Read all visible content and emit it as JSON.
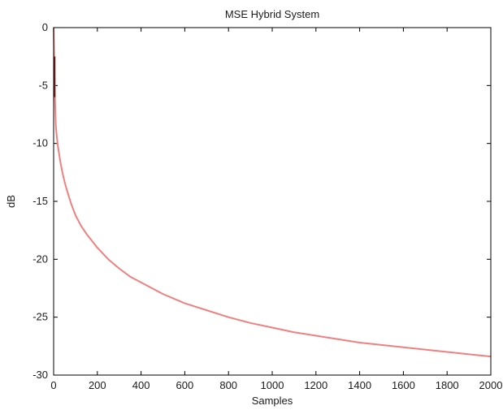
{
  "chart_data": {
    "type": "line",
    "title": "MSE Hybrid System",
    "xlabel": "Samples",
    "ylabel": "dB",
    "xlim": [
      0,
      2000
    ],
    "ylim": [
      -30,
      0
    ],
    "xticks": [
      0,
      200,
      400,
      600,
      800,
      1000,
      1200,
      1400,
      1600,
      1800,
      2000
    ],
    "yticks": [
      0,
      -5,
      -10,
      -15,
      -20,
      -25,
      -30
    ],
    "x_tick_labels": [
      "0",
      "200",
      "400",
      "600",
      "800",
      "1000",
      "1200",
      "1400",
      "1600",
      "1800",
      "2000"
    ],
    "y_tick_labels": [
      "0",
      "-5",
      "-10",
      "-15",
      "-20",
      "-25",
      "-30"
    ],
    "grid": false,
    "series": [
      {
        "color": "#f08080",
        "x": [
          0,
          3,
          6,
          10,
          15,
          20,
          30,
          40,
          50,
          60,
          80,
          100,
          125,
          150,
          200,
          250,
          300,
          350,
          400,
          500,
          600,
          700,
          800,
          900,
          1000,
          1100,
          1200,
          1300,
          1400,
          1500,
          1600,
          1700,
          1800,
          1900,
          2000
        ],
        "y": [
          0,
          -3,
          -6,
          -8.5,
          -9.5,
          -10.3,
          -11.5,
          -12.5,
          -13.3,
          -14.0,
          -15.2,
          -16.2,
          -17.1,
          -17.8,
          -19.0,
          -20.0,
          -20.8,
          -21.5,
          -22.0,
          -23.0,
          -23.8,
          -24.4,
          -25.0,
          -25.5,
          -25.9,
          -26.3,
          -26.6,
          -26.9,
          -27.2,
          -27.4,
          -27.6,
          -27.8,
          -28.0,
          -28.2,
          -28.4
        ]
      }
    ]
  }
}
